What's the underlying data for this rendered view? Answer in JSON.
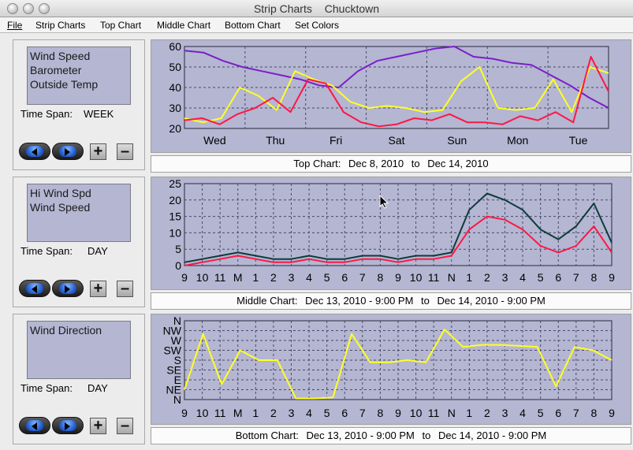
{
  "window": {
    "title": "Strip Charts",
    "location": "Chucktown"
  },
  "menu": [
    "File",
    "Strip Charts",
    "Top Chart",
    "Middle Chart",
    "Bottom Chart",
    "Set Colors"
  ],
  "panels": [
    {
      "series": [
        "Wind Speed",
        "Barometer",
        "Outside Temp"
      ],
      "span_label": "Time Span:",
      "span_value": "WEEK"
    },
    {
      "series": [
        "Hi Wind Spd",
        "Wind Speed"
      ],
      "span_label": "Time Span:",
      "span_value": "DAY"
    },
    {
      "series": [
        "Wind Direction"
      ],
      "span_label": "Time Span:",
      "span_value": "DAY"
    }
  ],
  "buttons": {
    "plus": "+",
    "minus": "–"
  },
  "captions": {
    "top": {
      "label": "Top Chart:",
      "from": "Dec 8, 2010",
      "to_word": "to",
      "to": "Dec 14, 2010"
    },
    "middle": {
      "label": "Middle Chart:",
      "from": "Dec 13, 2010 - 9:00 PM",
      "to_word": "to",
      "to": "Dec 14, 2010 - 9:00 PM"
    },
    "bottom": {
      "label": "Bottom Chart:",
      "from": "Dec 13, 2010 - 9:00 PM",
      "to_word": "to",
      "to": "Dec 14, 2010 - 9:00 PM"
    }
  },
  "colors": {
    "plot_bg": "#b4b6d2",
    "grid": "#4a4a6a",
    "wind": "#ff1744",
    "barometer": "#7a1fc8",
    "temp": "#ffff26",
    "hiwind": "#0e3b3b",
    "direction": "#ffff26"
  },
  "chart_data": [
    {
      "type": "line",
      "y_ticks": [
        "60",
        "50",
        "40",
        "30",
        "20"
      ],
      "ylim": [
        20,
        60
      ],
      "x_ticks": [
        "Wed",
        "Thu",
        "Fri",
        "Sat",
        "Sun",
        "Mon",
        "Tue"
      ],
      "series": [
        {
          "color": "purple",
          "values": [
            58,
            57,
            53,
            50,
            48,
            46,
            44,
            41,
            40,
            48,
            53,
            55,
            57,
            59,
            60,
            55,
            54,
            52,
            51,
            46,
            41,
            35,
            30
          ]
        },
        {
          "color": "yellow",
          "values": [
            25,
            23,
            25,
            40,
            36,
            29,
            48,
            44,
            41,
            33,
            30,
            31,
            30,
            28,
            29,
            43,
            50,
            30,
            29,
            30,
            44,
            28,
            50,
            47
          ]
        },
        {
          "color": "red",
          "values": [
            24,
            25,
            22,
            27,
            30,
            35,
            28,
            44,
            42,
            28,
            23,
            21,
            22,
            25,
            24,
            27,
            23,
            23,
            22,
            26,
            24,
            28,
            23,
            55,
            38
          ]
        }
      ]
    },
    {
      "type": "line",
      "y_ticks": [
        "25",
        "20",
        "15",
        "10",
        "5",
        "0"
      ],
      "ylim": [
        0,
        25
      ],
      "x_ticks": [
        "9",
        "10",
        "11",
        "M",
        "1",
        "2",
        "3",
        "4",
        "5",
        "6",
        "7",
        "8",
        "9",
        "10",
        "11",
        "N",
        "1",
        "2",
        "3",
        "4",
        "5",
        "6",
        "7",
        "8",
        "9"
      ],
      "series": [
        {
          "color": "dark green",
          "values": [
            1,
            2,
            3,
            4,
            3,
            2,
            2,
            3,
            2,
            2,
            3,
            3,
            2,
            3,
            3,
            4,
            17,
            22,
            20,
            17,
            11,
            8,
            12,
            19,
            7
          ]
        },
        {
          "color": "red",
          "values": [
            0,
            1,
            2,
            3,
            2,
            1,
            1,
            2,
            1,
            1,
            2,
            2,
            1,
            2,
            2,
            3,
            11,
            15,
            14,
            11,
            6,
            4,
            6,
            12,
            4
          ]
        }
      ]
    },
    {
      "type": "line",
      "y_ticks": [
        "N",
        "NW",
        "W",
        "SW",
        "S",
        "SE",
        "E",
        "NE",
        "N"
      ],
      "x_ticks": [
        "9",
        "10",
        "11",
        "M",
        "1",
        "2",
        "3",
        "4",
        "5",
        "6",
        "7",
        "8",
        "9",
        "10",
        "11",
        "N",
        "1",
        "2",
        "3",
        "4",
        "5",
        "6",
        "7",
        "8",
        "9"
      ],
      "series": [
        {
          "color": "yellow",
          "values": [
            45,
            300,
            70,
            225,
            180,
            180,
            5,
            5,
            10,
            300,
            170,
            170,
            180,
            170,
            320,
            240,
            250,
            250,
            245,
            240,
            60,
            240,
            225,
            180
          ]
        }
      ]
    }
  ]
}
